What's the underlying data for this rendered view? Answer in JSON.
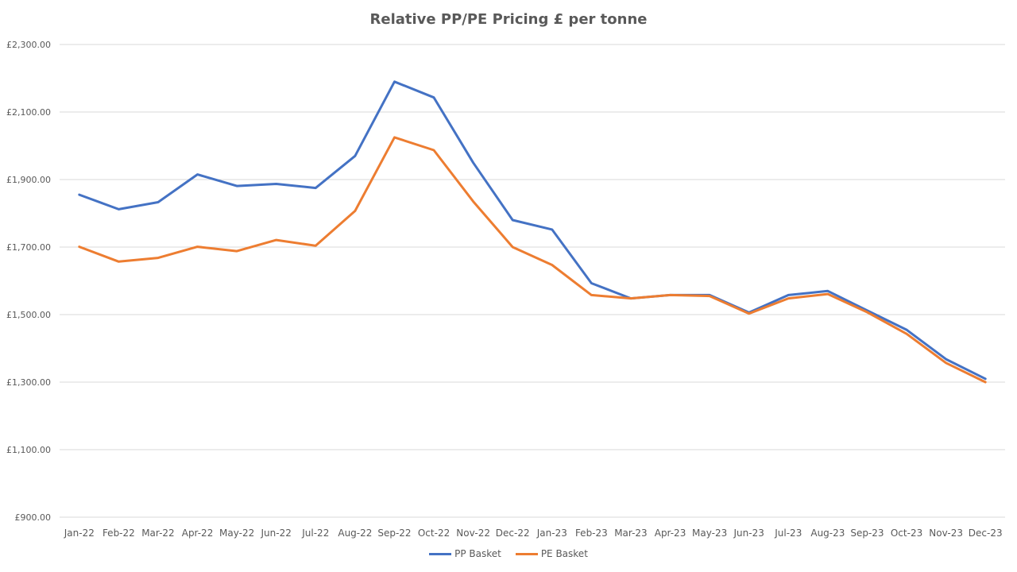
{
  "chart_data": {
    "type": "line",
    "title": "Relative PP/PE Pricing £ per tonne",
    "xlabel": "",
    "ylabel": "",
    "categories": [
      "Jan-22",
      "Feb-22",
      "Mar-22",
      "Apr-22",
      "May-22",
      "Jun-22",
      "Jul-22",
      "Aug-22",
      "Sep-22",
      "Oct-22",
      "Nov-22",
      "Dec-22",
      "Jan-23",
      "Feb-23",
      "Mar-23",
      "Apr-23",
      "May-23",
      "Jun-23",
      "Jul-23",
      "Aug-23",
      "Sep-23",
      "Oct-23",
      "Nov-23",
      "Dec-23"
    ],
    "ylim": [
      900,
      2300
    ],
    "yticks": [
      900,
      1100,
      1300,
      1500,
      1700,
      1900,
      2100,
      2300
    ],
    "ytick_labels": [
      "£900.00",
      "£1,100.00",
      "£1,300.00",
      "£1,500.00",
      "£1,700.00",
      "£1,900.00",
      "£2,100.00",
      "£2,300.00"
    ],
    "grid": true,
    "legend_position": "bottom",
    "series": [
      {
        "name": "PP Basket",
        "color": "#4472C4",
        "values": [
          1855,
          1812,
          1833,
          1915,
          1881,
          1887,
          1875,
          1970,
          2190,
          2143,
          1950,
          1780,
          1752,
          1593,
          1548,
          1558,
          1558,
          1506,
          1558,
          1570,
          1512,
          1455,
          1368,
          1310
        ]
      },
      {
        "name": "PE Basket",
        "color": "#ED7D31",
        "values": [
          1701,
          1657,
          1668,
          1701,
          1688,
          1721,
          1704,
          1807,
          2025,
          1987,
          1835,
          1700,
          1647,
          1558,
          1548,
          1558,
          1555,
          1503,
          1548,
          1561,
          1507,
          1443,
          1357,
          1300
        ]
      }
    ]
  }
}
